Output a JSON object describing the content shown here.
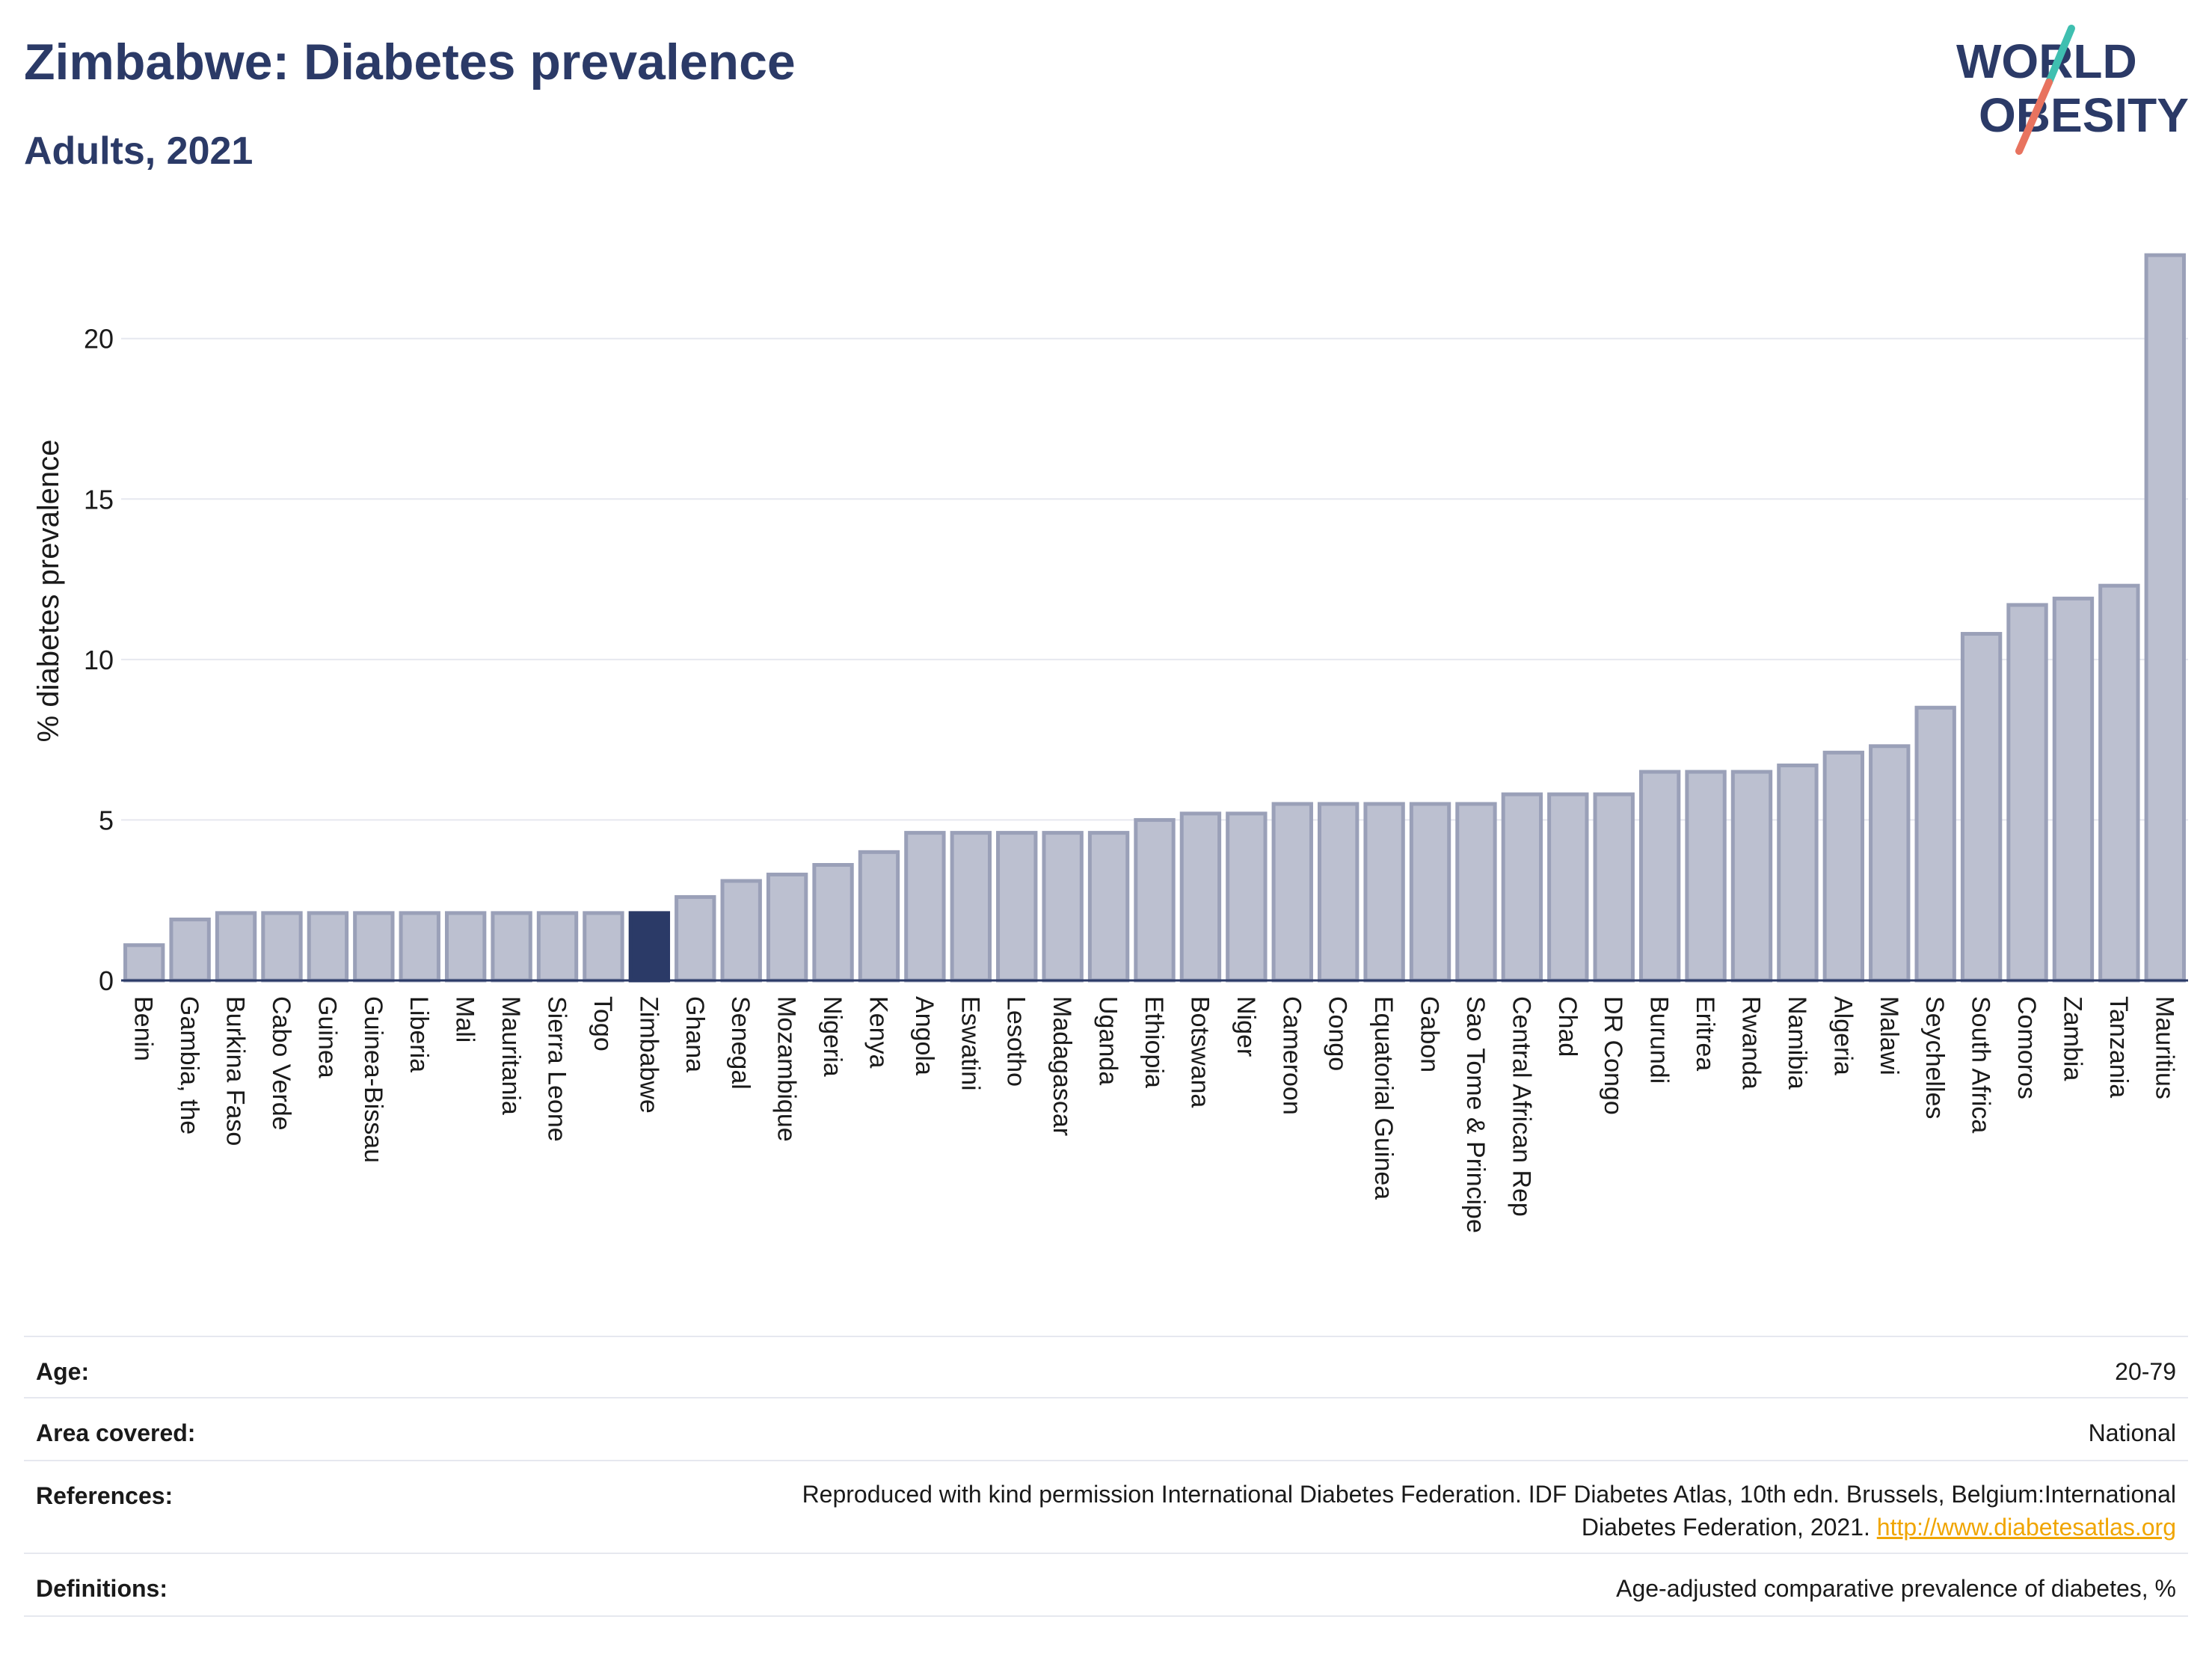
{
  "header": {
    "title": "Zimbabwe: Diabetes prevalence",
    "subtitle": "Adults, 2021",
    "logo_line1": "WORLD",
    "logo_line2": "OBESITY"
  },
  "chart_data": {
    "type": "bar",
    "ylabel": "% diabetes prevalence",
    "ylim": [
      0,
      23
    ],
    "yticks": [
      "0",
      "5",
      "10",
      "15",
      "20"
    ],
    "ytick_values": [
      0,
      5,
      10,
      15,
      20
    ],
    "grid": true,
    "highlight": "Zimbabwe",
    "colors": {
      "bar": "#bcc0d0",
      "bar_edge": "#9aa0b8",
      "highlight": "#2b3a67",
      "grid": "#e6e8ef",
      "axis": "#2b3a67"
    },
    "categories": [
      "Benin",
      "Gambia, the",
      "Burkina Faso",
      "Cabo Verde",
      "Guinea",
      "Guinea-Bissau",
      "Liberia",
      "Mali",
      "Mauritania",
      "Sierra Leone",
      "Togo",
      "Zimbabwe",
      "Ghana",
      "Senegal",
      "Mozambique",
      "Nigeria",
      "Kenya",
      "Angola",
      "Eswatini",
      "Lesotho",
      "Madagascar",
      "Uganda",
      "Ethiopia",
      "Botswana",
      "Niger",
      "Cameroon",
      "Congo",
      "Equatorial Guinea",
      "Gabon",
      "Sao Tome & Principe",
      "Central African Rep",
      "Chad",
      "DR Congo",
      "Burundi",
      "Eritrea",
      "Rwanda",
      "Namibia",
      "Algeria",
      "Malawi",
      "Seychelles",
      "South Africa",
      "Comoros",
      "Zambia",
      "Tanzania",
      "Mauritius"
    ],
    "values": [
      1.1,
      1.9,
      2.1,
      2.1,
      2.1,
      2.1,
      2.1,
      2.1,
      2.1,
      2.1,
      2.1,
      2.1,
      2.6,
      3.1,
      3.3,
      3.6,
      4.0,
      4.6,
      4.6,
      4.6,
      4.6,
      4.6,
      5.0,
      5.2,
      5.2,
      5.5,
      5.5,
      5.5,
      5.5,
      5.5,
      5.8,
      5.8,
      5.8,
      6.5,
      6.5,
      6.5,
      6.7,
      7.1,
      7.3,
      8.5,
      10.8,
      11.7,
      11.9,
      12.3,
      22.6
    ]
  },
  "info": {
    "rows": [
      {
        "key": "Age:",
        "value": "20-79"
      },
      {
        "key": "Area covered:",
        "value": "National"
      },
      {
        "key": "References:",
        "value_line1": "Reproduced with kind permission International Diabetes Federation.  IDF Diabetes Atlas, 10th edn. Brussels, Belgium:International",
        "value_line2": "Diabetes Federation, 2021. ",
        "link": "http://www.diabetesatlas.org"
      },
      {
        "key": "Definitions:",
        "value": "Age-adjusted comparative prevalence of diabetes, %"
      }
    ]
  }
}
